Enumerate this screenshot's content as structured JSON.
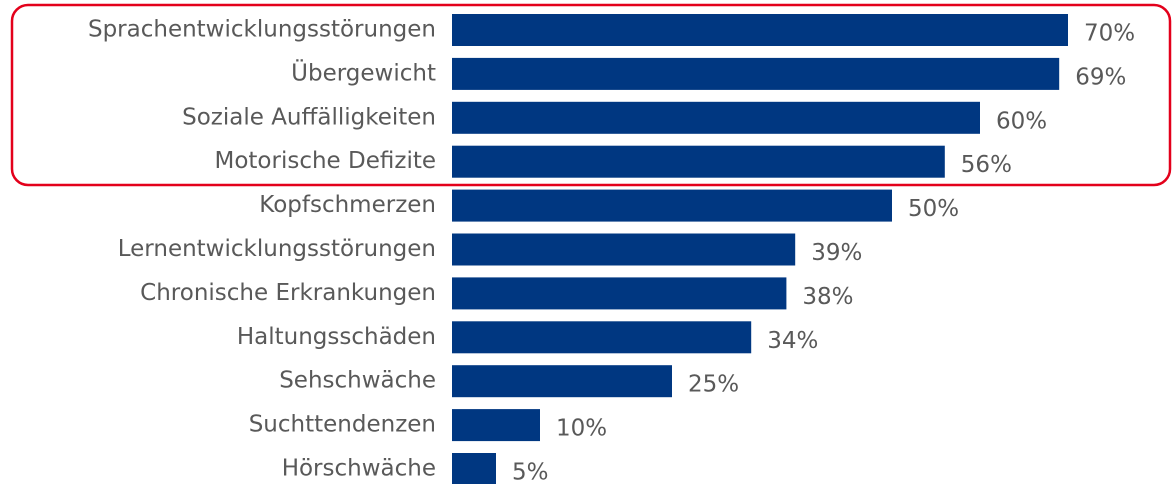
{
  "chart_data": {
    "type": "bar",
    "orientation": "horizontal",
    "categories": [
      "Sprachentwicklungsstörungen",
      "Übergewicht",
      "Soziale Auffälligkeiten",
      "Motorische Defizite",
      "Kopfschmerzen",
      "Lernentwicklungsstörungen",
      "Chronische Erkrankungen",
      "Haltungsschäden",
      "Sehschwäche",
      "Suchttendenzen",
      "Hörschwäche"
    ],
    "values": [
      70,
      69,
      60,
      56,
      50,
      39,
      38,
      34,
      25,
      10,
      5
    ],
    "value_labels": [
      "70%",
      "69%",
      "60%",
      "56%",
      "50%",
      "39%",
      "38%",
      "34%",
      "25%",
      "10%",
      "5%"
    ],
    "color": "#003781"
  }
}
